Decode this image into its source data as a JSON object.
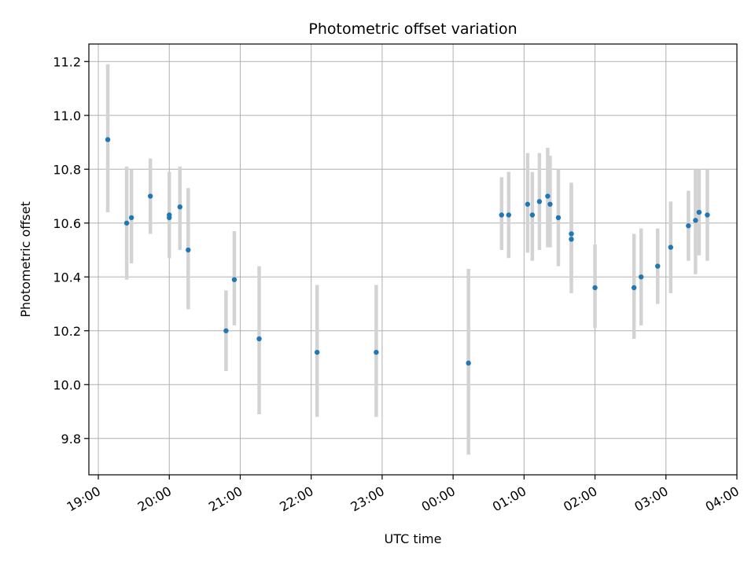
{
  "chart_data": {
    "type": "scatter",
    "title": "Photometric offset variation",
    "xlabel": "UTC time",
    "ylabel": "Photometric offset",
    "x_unit": "UTC hh:mm (clock time; values after 23:59 fall on the next day)",
    "xticks": [
      "19:00",
      "20:00",
      "21:00",
      "22:00",
      "23:00",
      "00:00",
      "01:00",
      "02:00",
      "03:00",
      "04:00"
    ],
    "yticks": [
      "9.8",
      "10.0",
      "10.2",
      "10.4",
      "10.6",
      "10.8",
      "11.0",
      "11.2"
    ],
    "xlim": [
      "18:52",
      "04:00"
    ],
    "ylim": [
      9.665,
      11.265
    ],
    "grid": true,
    "colors": {
      "point": "#1f77b4",
      "errorbar": "#d3d3d3",
      "grid": "#b0b0b0"
    },
    "series": [
      {
        "points": [
          {
            "x": "19:08",
            "y": 10.91,
            "ylow": 10.64,
            "yhigh": 11.19
          },
          {
            "x": "19:24",
            "y": 10.6,
            "ylow": 10.39,
            "yhigh": 10.81
          },
          {
            "x": "19:28",
            "y": 10.62,
            "ylow": 10.45,
            "yhigh": 10.8
          },
          {
            "x": "19:44",
            "y": 10.7,
            "ylow": 10.56,
            "yhigh": 10.84
          },
          {
            "x": "20:00",
            "y": 10.63,
            "ylow": 10.47,
            "yhigh": 10.79
          },
          {
            "x": "20:00",
            "y": 10.62,
            "ylow": 10.47,
            "yhigh": 10.76
          },
          {
            "x": "20:09",
            "y": 10.66,
            "ylow": 10.5,
            "yhigh": 10.81
          },
          {
            "x": "20:16",
            "y": 10.5,
            "ylow": 10.28,
            "yhigh": 10.73
          },
          {
            "x": "20:48",
            "y": 10.2,
            "ylow": 10.05,
            "yhigh": 10.35
          },
          {
            "x": "20:55",
            "y": 10.39,
            "ylow": 10.22,
            "yhigh": 10.57
          },
          {
            "x": "21:16",
            "y": 10.17,
            "ylow": 9.89,
            "yhigh": 10.44
          },
          {
            "x": "22:05",
            "y": 10.12,
            "ylow": 9.88,
            "yhigh": 10.37
          },
          {
            "x": "22:55",
            "y": 10.12,
            "ylow": 9.88,
            "yhigh": 10.37
          },
          {
            "x": "00:13",
            "y": 10.08,
            "ylow": 9.74,
            "yhigh": 10.43
          },
          {
            "x": "00:41",
            "y": 10.63,
            "ylow": 10.5,
            "yhigh": 10.77
          },
          {
            "x": "00:47",
            "y": 10.63,
            "ylow": 10.47,
            "yhigh": 10.79
          },
          {
            "x": "01:03",
            "y": 10.67,
            "ylow": 10.49,
            "yhigh": 10.86
          },
          {
            "x": "01:07",
            "y": 10.63,
            "ylow": 10.46,
            "yhigh": 10.79
          },
          {
            "x": "01:13",
            "y": 10.68,
            "ylow": 10.5,
            "yhigh": 10.86
          },
          {
            "x": "01:20",
            "y": 10.7,
            "ylow": 10.51,
            "yhigh": 10.88
          },
          {
            "x": "01:22",
            "y": 10.67,
            "ylow": 10.51,
            "yhigh": 10.85
          },
          {
            "x": "01:29",
            "y": 10.62,
            "ylow": 10.44,
            "yhigh": 10.8
          },
          {
            "x": "01:40",
            "y": 10.56,
            "ylow": 10.38,
            "yhigh": 10.75
          },
          {
            "x": "01:40",
            "y": 10.54,
            "ylow": 10.34,
            "yhigh": 10.74
          },
          {
            "x": "02:00",
            "y": 10.36,
            "ylow": 10.21,
            "yhigh": 10.52
          },
          {
            "x": "02:33",
            "y": 10.36,
            "ylow": 10.17,
            "yhigh": 10.56
          },
          {
            "x": "02:39",
            "y": 10.4,
            "ylow": 10.22,
            "yhigh": 10.58
          },
          {
            "x": "02:53",
            "y": 10.44,
            "ylow": 10.3,
            "yhigh": 10.58
          },
          {
            "x": "03:04",
            "y": 10.51,
            "ylow": 10.34,
            "yhigh": 10.68
          },
          {
            "x": "03:19",
            "y": 10.59,
            "ylow": 10.46,
            "yhigh": 10.72
          },
          {
            "x": "03:25",
            "y": 10.61,
            "ylow": 10.41,
            "yhigh": 10.8
          },
          {
            "x": "03:28",
            "y": 10.64,
            "ylow": 10.48,
            "yhigh": 10.8
          },
          {
            "x": "03:35",
            "y": 10.63,
            "ylow": 10.46,
            "yhigh": 10.8
          }
        ]
      }
    ]
  }
}
